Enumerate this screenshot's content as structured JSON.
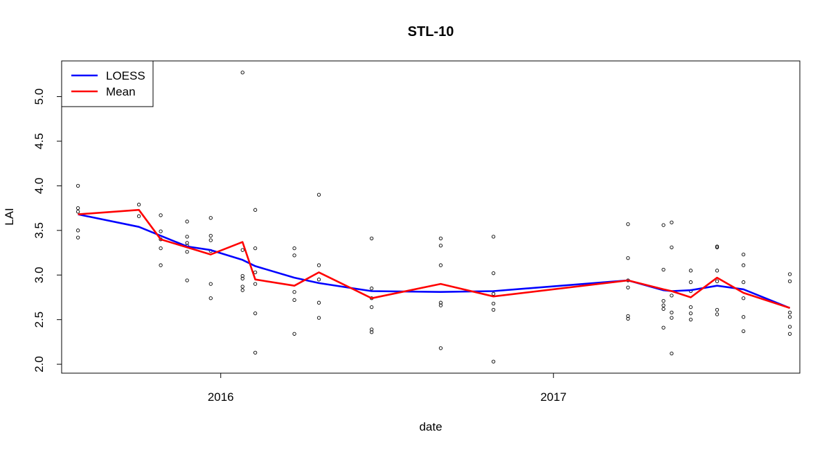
{
  "chart_data": {
    "type": "scatter",
    "title": "STL-10",
    "xlabel": "date",
    "ylabel": "LAI",
    "xlim": [
      "2015-07-10",
      "2017-09-29"
    ],
    "ylim": [
      1.9,
      5.4
    ],
    "x_ticks": [
      {
        "value": "2016-01-01",
        "label": "2016"
      },
      {
        "value": "2017-01-01",
        "label": "2017"
      }
    ],
    "y_ticks": [
      {
        "value": 2.0,
        "label": "2.0"
      },
      {
        "value": 2.5,
        "label": "2.5"
      },
      {
        "value": 3.0,
        "label": "3.0"
      },
      {
        "value": 3.5,
        "label": "3.5"
      },
      {
        "value": 4.0,
        "label": "4.0"
      },
      {
        "value": 4.5,
        "label": "4.5"
      },
      {
        "value": 5.0,
        "label": "5.0"
      }
    ],
    "legend": {
      "position": "top-left",
      "entries": [
        {
          "label": "LOESS",
          "color": "#0000ff"
        },
        {
          "label": "Mean",
          "color": "#ff0000"
        }
      ]
    },
    "points": [
      {
        "date": "2015-07-28",
        "values": [
          4.0,
          3.75,
          3.71,
          3.5,
          3.42
        ]
      },
      {
        "date": "2015-10-03",
        "values": [
          3.79,
          3.66
        ]
      },
      {
        "date": "2015-10-27",
        "values": [
          3.67,
          3.49,
          3.4,
          3.3,
          3.11
        ]
      },
      {
        "date": "2015-11-25",
        "values": [
          3.6,
          3.43,
          3.36,
          3.33,
          3.26,
          2.94
        ]
      },
      {
        "date": "2015-12-21",
        "values": [
          3.64,
          3.44,
          3.39,
          3.27,
          2.9,
          2.74
        ]
      },
      {
        "date": "2016-01-25",
        "values": [
          5.27,
          3.28,
          2.99,
          2.96,
          2.87,
          2.83
        ]
      },
      {
        "date": "2016-02-08",
        "values": [
          3.73,
          3.3,
          3.03,
          2.9,
          2.57,
          2.13
        ]
      },
      {
        "date": "2016-03-22",
        "values": [
          3.3,
          3.22,
          2.81,
          2.72,
          2.34
        ]
      },
      {
        "date": "2016-04-18",
        "values": [
          3.9,
          3.11,
          2.95,
          2.69,
          2.52
        ]
      },
      {
        "date": "2016-06-15",
        "values": [
          3.41,
          2.85,
          2.74,
          2.64,
          2.39,
          2.36
        ]
      },
      {
        "date": "2016-08-30",
        "values": [
          3.41,
          3.33,
          3.11,
          2.69,
          2.66,
          2.18
        ]
      },
      {
        "date": "2016-10-27",
        "values": [
          3.43,
          3.02,
          2.79,
          2.68,
          2.61,
          2.03
        ]
      },
      {
        "date": "2017-03-24",
        "values": [
          3.57,
          3.19,
          2.94,
          2.86,
          2.54,
          2.51
        ]
      },
      {
        "date": "2017-05-02",
        "values": [
          3.56,
          3.06,
          2.71,
          2.66,
          2.62,
          2.41
        ]
      },
      {
        "date": "2017-05-11",
        "values": [
          3.59,
          3.31,
          2.77,
          2.58,
          2.52,
          2.12
        ]
      },
      {
        "date": "2017-06-01",
        "values": [
          3.05,
          2.92,
          2.82,
          2.64,
          2.57,
          2.5
        ]
      },
      {
        "date": "2017-06-30",
        "values": [
          3.32,
          3.31,
          3.05,
          2.93,
          2.61,
          2.56
        ]
      },
      {
        "date": "2017-07-29",
        "values": [
          3.23,
          3.11,
          2.92,
          2.74,
          2.53,
          2.37
        ]
      },
      {
        "date": "2017-09-18",
        "values": [
          3.01,
          2.93,
          2.58,
          2.53,
          2.42,
          2.34
        ]
      }
    ],
    "series": [
      {
        "name": "LOESS",
        "color": "#0000ff",
        "x": [
          "2015-07-28",
          "2015-10-03",
          "2015-10-27",
          "2015-11-25",
          "2015-12-21",
          "2016-01-25",
          "2016-02-08",
          "2016-03-22",
          "2016-04-18",
          "2016-06-15",
          "2016-08-30",
          "2016-10-27",
          "2017-03-24",
          "2017-05-02",
          "2017-05-11",
          "2017-06-01",
          "2017-06-30",
          "2017-07-29",
          "2017-09-18"
        ],
        "y": [
          3.68,
          3.54,
          3.44,
          3.32,
          3.28,
          3.17,
          3.1,
          2.97,
          2.91,
          2.82,
          2.81,
          2.82,
          2.94,
          2.83,
          2.82,
          2.83,
          2.88,
          2.84,
          2.63
        ]
      },
      {
        "name": "Mean",
        "color": "#ff0000",
        "x": [
          "2015-07-28",
          "2015-10-03",
          "2015-10-27",
          "2015-11-25",
          "2015-12-21",
          "2016-01-25",
          "2016-02-08",
          "2016-03-22",
          "2016-04-18",
          "2016-06-15",
          "2016-08-30",
          "2016-10-27",
          "2017-03-24",
          "2017-05-02",
          "2017-05-11",
          "2017-06-01",
          "2017-06-30",
          "2017-07-29",
          "2017-09-18"
        ],
        "y": [
          3.68,
          3.73,
          3.4,
          3.31,
          3.23,
          3.37,
          2.95,
          2.88,
          3.03,
          2.74,
          2.9,
          2.76,
          2.94,
          2.84,
          2.82,
          2.75,
          2.97,
          2.8,
          2.63
        ]
      }
    ]
  }
}
